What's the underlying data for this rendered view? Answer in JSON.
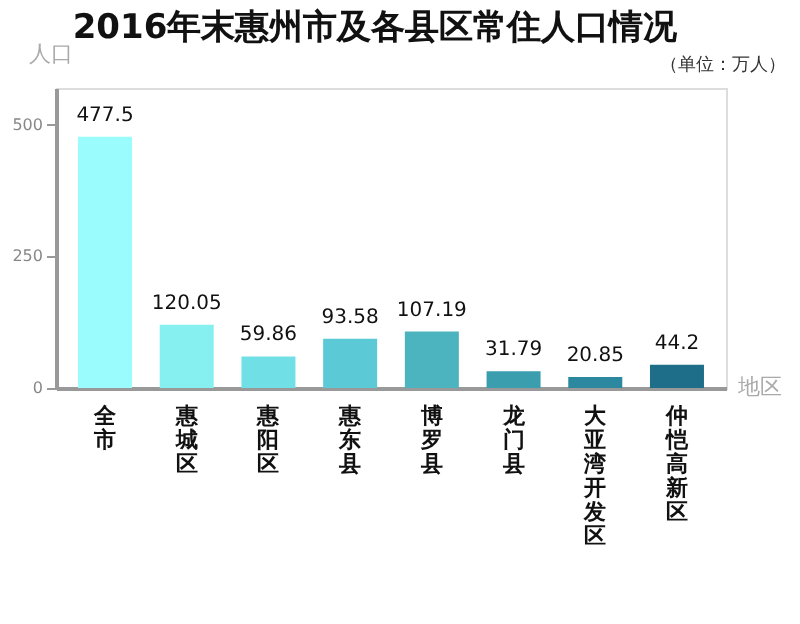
{
  "chart_data": {
    "type": "bar",
    "title": "2016年末惠州市及各县区常住人口情况",
    "annotations": [
      "（单位：万人）"
    ],
    "ylabel": "人口",
    "xlabel": "地区",
    "categories": [
      "全市",
      "惠城区",
      "惠阳区",
      "惠东县",
      "博罗县",
      "龙门县",
      "大亚湾开发区",
      "仲恺高新区"
    ],
    "values": [
      477.5,
      120.05,
      59.86,
      93.58,
      107.19,
      31.79,
      20.85,
      44.2
    ],
    "colors": [
      "#9afcfc",
      "#86f0f0",
      "#70e0e6",
      "#5ccad6",
      "#4cb4be",
      "#3a9eae",
      "#2c889e",
      "#1e6e8a"
    ],
    "ylim": [
      0,
      570
    ],
    "yticks": [
      0,
      250,
      500
    ],
    "grid": false,
    "data_labels": true
  }
}
